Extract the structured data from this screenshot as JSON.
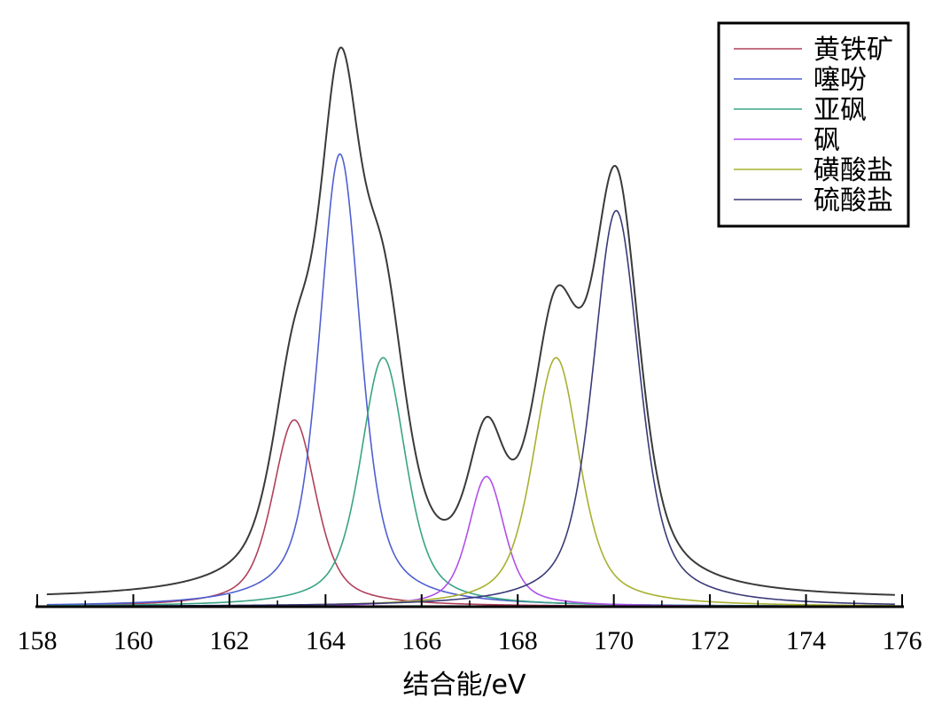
{
  "chart_data": {
    "type": "line",
    "xlabel": "结合能/eV",
    "ylabel": "",
    "xlim": [
      158,
      176
    ],
    "ylim": [
      0,
      1
    ],
    "x_ticks": [
      "158",
      "160",
      "162",
      "164",
      "166",
      "168",
      "170",
      "172",
      "174",
      "176"
    ],
    "grid": false,
    "legend_position": "top-right",
    "series": [
      {
        "name": "黄铁矿",
        "color": "#b0405a",
        "shape": "voigt",
        "center": 163.35,
        "height": 0.33,
        "width": 0.58,
        "tail": 0.012
      },
      {
        "name": "噻吩",
        "color": "#4f5fd0",
        "shape": "voigt",
        "center": 164.3,
        "height": 0.8,
        "width": 0.55,
        "tail": 0.018
      },
      {
        "name": "亚砜",
        "color": "#3aa386",
        "shape": "voigt",
        "center": 165.2,
        "height": 0.44,
        "width": 0.6,
        "tail": 0.012
      },
      {
        "name": "砜",
        "color": "#b050e8",
        "shape": "voigt",
        "center": 167.35,
        "height": 0.23,
        "width": 0.48,
        "tail": 0.008
      },
      {
        "name": "磺酸盐",
        "color": "#a8b030",
        "shape": "voigt",
        "center": 168.8,
        "height": 0.44,
        "width": 0.62,
        "tail": 0.012
      },
      {
        "name": "硫酸盐",
        "color": "#3a3a78",
        "shape": "voigt",
        "center": 170.05,
        "height": 0.7,
        "width": 0.62,
        "tail": 0.018
      }
    ],
    "envelope": {
      "color": "#3a3a3a",
      "shape": "sum"
    }
  }
}
